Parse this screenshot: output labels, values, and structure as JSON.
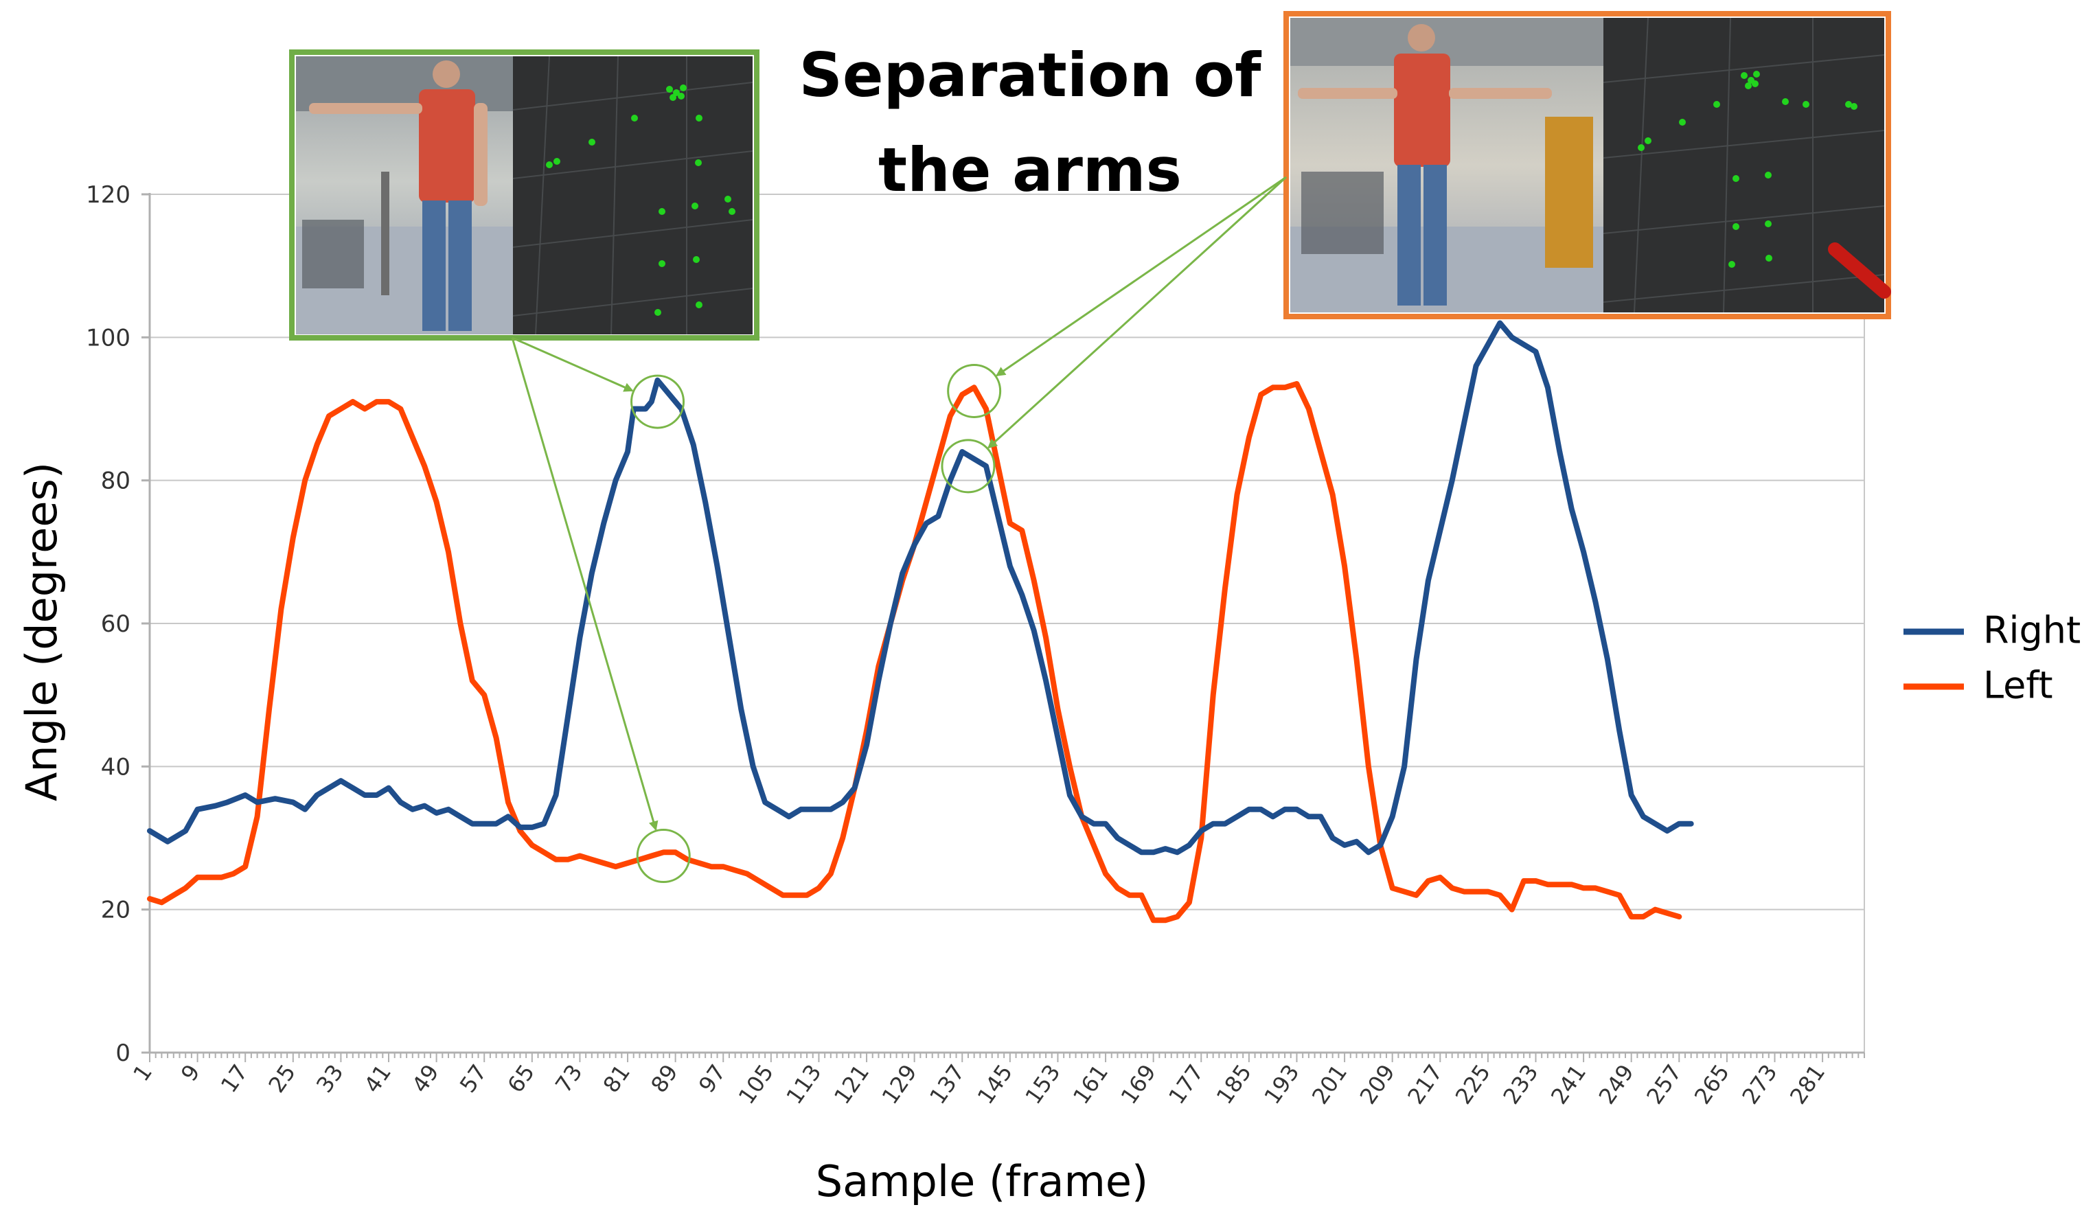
{
  "chart_data": {
    "type": "line",
    "title": "Separation of the arms",
    "title_lines": [
      "Separation of",
      "the arms"
    ],
    "xlabel": "Sample (frame)",
    "ylabel": "Angle (degrees)",
    "ylim": [
      0,
      120
    ],
    "yticks": [
      0,
      20,
      40,
      60,
      80,
      100,
      120
    ],
    "xlim": [
      1,
      288
    ],
    "xticks": [
      "1",
      "9",
      "17",
      "25",
      "33",
      "41",
      "49",
      "57",
      "65",
      "73",
      "81",
      "89",
      "97",
      "105",
      "113",
      "121",
      "129",
      "137",
      "145",
      "153",
      "161",
      "169",
      "177",
      "185",
      "193",
      "201",
      "209",
      "217",
      "225",
      "233",
      "241",
      "249",
      "257",
      "265",
      "273",
      "281"
    ],
    "grid": "horizontal",
    "legend_position": "right",
    "series": [
      {
        "name": "Right",
        "color": "#1f4e8c",
        "points": [
          [
            1,
            31
          ],
          [
            4,
            29.5
          ],
          [
            7,
            31
          ],
          [
            9,
            34
          ],
          [
            12,
            34.5
          ],
          [
            14,
            35
          ],
          [
            17,
            36
          ],
          [
            19,
            35
          ],
          [
            22,
            35.5
          ],
          [
            25,
            35
          ],
          [
            27,
            34
          ],
          [
            29,
            36
          ],
          [
            31,
            37
          ],
          [
            33,
            38
          ],
          [
            35,
            37
          ],
          [
            37,
            36
          ],
          [
            39,
            36
          ],
          [
            41,
            37
          ],
          [
            43,
            35
          ],
          [
            45,
            34
          ],
          [
            47,
            34.5
          ],
          [
            49,
            33.5
          ],
          [
            51,
            34
          ],
          [
            53,
            33
          ],
          [
            55,
            32
          ],
          [
            57,
            32
          ],
          [
            59,
            32
          ],
          [
            61,
            33
          ],
          [
            63,
            31.5
          ],
          [
            65,
            31.5
          ],
          [
            67,
            32
          ],
          [
            69,
            36
          ],
          [
            71,
            47
          ],
          [
            73,
            58
          ],
          [
            75,
            67
          ],
          [
            77,
            74
          ],
          [
            79,
            80
          ],
          [
            81,
            84
          ],
          [
            82,
            90
          ],
          [
            84,
            90
          ],
          [
            85,
            91
          ],
          [
            86,
            94
          ],
          [
            88,
            92
          ],
          [
            90,
            90
          ],
          [
            92,
            85
          ],
          [
            94,
            77
          ],
          [
            96,
            68
          ],
          [
            98,
            58
          ],
          [
            100,
            48
          ],
          [
            102,
            40
          ],
          [
            104,
            35
          ],
          [
            106,
            34
          ],
          [
            108,
            33
          ],
          [
            110,
            34
          ],
          [
            113,
            34
          ],
          [
            115,
            34
          ],
          [
            117,
            35
          ],
          [
            119,
            37
          ],
          [
            121,
            43
          ],
          [
            123,
            52
          ],
          [
            125,
            60
          ],
          [
            127,
            67
          ],
          [
            129,
            71
          ],
          [
            131,
            74
          ],
          [
            133,
            75
          ],
          [
            135,
            80
          ],
          [
            137,
            84
          ],
          [
            139,
            83
          ],
          [
            141,
            82
          ],
          [
            143,
            75
          ],
          [
            145,
            68
          ],
          [
            147,
            64
          ],
          [
            149,
            59
          ],
          [
            151,
            52
          ],
          [
            153,
            44
          ],
          [
            155,
            36
          ],
          [
            157,
            33
          ],
          [
            159,
            32
          ],
          [
            161,
            32
          ],
          [
            163,
            30
          ],
          [
            165,
            29
          ],
          [
            167,
            28
          ],
          [
            169,
            28
          ],
          [
            171,
            28.5
          ],
          [
            173,
            28
          ],
          [
            175,
            29
          ],
          [
            177,
            31
          ],
          [
            179,
            32
          ],
          [
            181,
            32
          ],
          [
            183,
            33
          ],
          [
            185,
            34
          ],
          [
            187,
            34
          ],
          [
            189,
            33
          ],
          [
            191,
            34
          ],
          [
            193,
            34
          ],
          [
            195,
            33
          ],
          [
            197,
            33
          ],
          [
            199,
            30
          ],
          [
            201,
            29
          ],
          [
            203,
            29.5
          ],
          [
            205,
            28
          ],
          [
            207,
            29
          ],
          [
            209,
            33
          ],
          [
            211,
            40
          ],
          [
            213,
            55
          ],
          [
            215,
            66
          ],
          [
            217,
            73
          ],
          [
            219,
            80
          ],
          [
            221,
            88
          ],
          [
            223,
            96
          ],
          [
            225,
            99
          ],
          [
            227,
            102
          ],
          [
            229,
            100
          ],
          [
            231,
            99
          ],
          [
            233,
            98
          ],
          [
            235,
            93
          ],
          [
            237,
            84
          ],
          [
            239,
            76
          ],
          [
            241,
            70
          ],
          [
            243,
            63
          ],
          [
            245,
            55
          ],
          [
            247,
            45
          ],
          [
            249,
            36
          ],
          [
            251,
            33
          ],
          [
            253,
            32
          ],
          [
            255,
            31
          ],
          [
            257,
            32
          ],
          [
            259,
            32
          ]
        ]
      },
      {
        "name": "Left",
        "color": "#ff4500",
        "points": [
          [
            1,
            21.5
          ],
          [
            3,
            21
          ],
          [
            5,
            22
          ],
          [
            7,
            23
          ],
          [
            9,
            24.5
          ],
          [
            11,
            24.5
          ],
          [
            13,
            24.5
          ],
          [
            15,
            25
          ],
          [
            17,
            26
          ],
          [
            19,
            33
          ],
          [
            21,
            48
          ],
          [
            23,
            62
          ],
          [
            25,
            72
          ],
          [
            27,
            80
          ],
          [
            29,
            85
          ],
          [
            31,
            89
          ],
          [
            33,
            90
          ],
          [
            35,
            91
          ],
          [
            37,
            90
          ],
          [
            39,
            91
          ],
          [
            41,
            91
          ],
          [
            43,
            90
          ],
          [
            45,
            86
          ],
          [
            47,
            82
          ],
          [
            49,
            77
          ],
          [
            51,
            70
          ],
          [
            53,
            60
          ],
          [
            55,
            52
          ],
          [
            57,
            50
          ],
          [
            59,
            44
          ],
          [
            61,
            35
          ],
          [
            63,
            31
          ],
          [
            65,
            29
          ],
          [
            67,
            28
          ],
          [
            69,
            27
          ],
          [
            71,
            27
          ],
          [
            73,
            27.5
          ],
          [
            75,
            27
          ],
          [
            77,
            26.5
          ],
          [
            79,
            26
          ],
          [
            81,
            26.5
          ],
          [
            83,
            27
          ],
          [
            85,
            27.5
          ],
          [
            87,
            28
          ],
          [
            89,
            28
          ],
          [
            91,
            27
          ],
          [
            93,
            26.5
          ],
          [
            95,
            26
          ],
          [
            97,
            26
          ],
          [
            99,
            25.5
          ],
          [
            101,
            25
          ],
          [
            103,
            24
          ],
          [
            105,
            23
          ],
          [
            107,
            22
          ],
          [
            109,
            22
          ],
          [
            111,
            22
          ],
          [
            113,
            23
          ],
          [
            115,
            25
          ],
          [
            117,
            30
          ],
          [
            119,
            37
          ],
          [
            121,
            45
          ],
          [
            123,
            54
          ],
          [
            125,
            60
          ],
          [
            127,
            66
          ],
          [
            129,
            71
          ],
          [
            131,
            77
          ],
          [
            133,
            83
          ],
          [
            135,
            89
          ],
          [
            137,
            92
          ],
          [
            139,
            93
          ],
          [
            141,
            90
          ],
          [
            143,
            82
          ],
          [
            145,
            74
          ],
          [
            147,
            73
          ],
          [
            149,
            66
          ],
          [
            151,
            58
          ],
          [
            153,
            48
          ],
          [
            155,
            40
          ],
          [
            157,
            33
          ],
          [
            159,
            29
          ],
          [
            161,
            25
          ],
          [
            163,
            23
          ],
          [
            165,
            22
          ],
          [
            167,
            22
          ],
          [
            169,
            18.5
          ],
          [
            171,
            18.5
          ],
          [
            173,
            19
          ],
          [
            175,
            21
          ],
          [
            177,
            30
          ],
          [
            179,
            50
          ],
          [
            181,
            65
          ],
          [
            183,
            78
          ],
          [
            185,
            86
          ],
          [
            187,
            92
          ],
          [
            189,
            93
          ],
          [
            191,
            93
          ],
          [
            193,
            93.5
          ],
          [
            195,
            90
          ],
          [
            197,
            84
          ],
          [
            199,
            78
          ],
          [
            201,
            68
          ],
          [
            203,
            55
          ],
          [
            205,
            40
          ],
          [
            207,
            29
          ],
          [
            209,
            23
          ],
          [
            211,
            22.5
          ],
          [
            213,
            22
          ],
          [
            215,
            24
          ],
          [
            217,
            24.5
          ],
          [
            219,
            23
          ],
          [
            221,
            22.5
          ],
          [
            223,
            22.5
          ],
          [
            225,
            22.5
          ],
          [
            227,
            22
          ],
          [
            229,
            20
          ],
          [
            231,
            24
          ],
          [
            233,
            24
          ],
          [
            235,
            23.5
          ],
          [
            237,
            23.5
          ],
          [
            239,
            23.5
          ],
          [
            241,
            23
          ],
          [
            243,
            23
          ],
          [
            245,
            22.5
          ],
          [
            247,
            22
          ],
          [
            249,
            19
          ],
          [
            251,
            19
          ],
          [
            253,
            20
          ],
          [
            255,
            19.5
          ],
          [
            257,
            19
          ]
        ]
      }
    ],
    "highlights": [
      {
        "series": "Right",
        "x": 86,
        "y": 91
      },
      {
        "series": "Left",
        "x": 87,
        "y": 27.5
      },
      {
        "series": "Left",
        "x": 139,
        "y": 92.5
      },
      {
        "series": "Right",
        "x": 138,
        "y": 82
      }
    ],
    "annotation_colors": {
      "arrow": "#7ab648",
      "highlight_circle": "#7ab648",
      "inset_left_border": "#70ad47",
      "inset_right_border": "#ed7d31"
    },
    "insets": [
      {
        "name": "inset-left",
        "description_icon": "camera-frame-image",
        "border_color": "#70ad47"
      },
      {
        "name": "inset-right",
        "description_icon": "camera-frame-image",
        "border_color": "#ed7d31"
      }
    ]
  }
}
